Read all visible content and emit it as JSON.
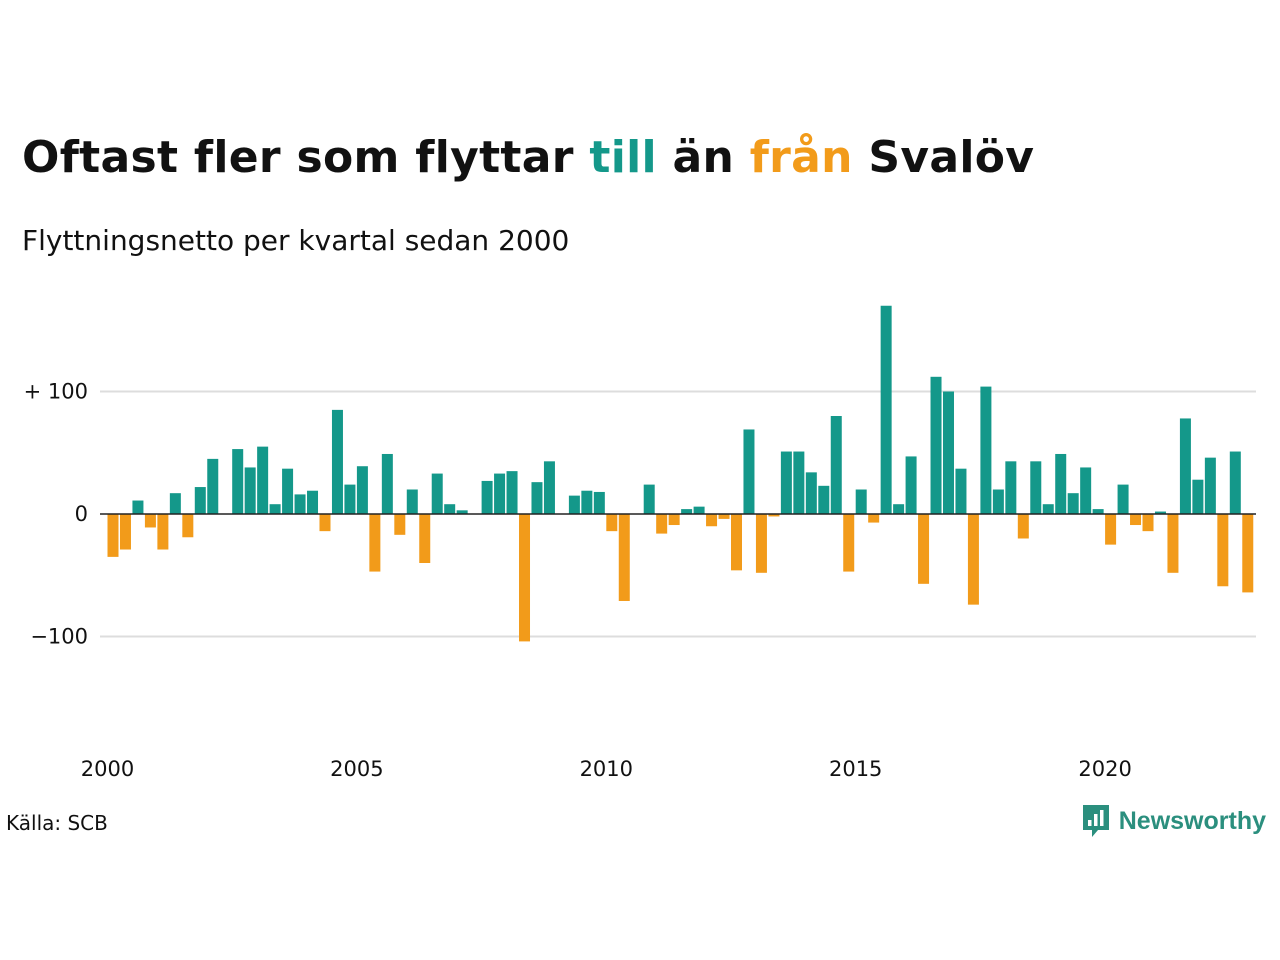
{
  "title": {
    "part1": "Oftast fler som flyttar ",
    "highlight_pos": "till",
    "part2": " än ",
    "highlight_neg": "från",
    "part3": " Svalöv"
  },
  "subtitle": "Flyttningsnetto per kvartal sedan 2000",
  "source": "Källa: SCB",
  "brand": "Newsworthy",
  "colors": {
    "positive": "#14988a",
    "negative": "#f29b1a",
    "grid": "#dddddd",
    "axis": "#222222",
    "brand": "#2b8f7e"
  },
  "chart_data": {
    "type": "bar",
    "title": "Oftast fler som flyttar till än från Svalöv",
    "subtitle": "Flyttningsnetto per kvartal sedan 2000",
    "start": {
      "year": 2000,
      "quarter": 1
    },
    "values": [
      -35,
      -29,
      11,
      -11,
      -29,
      17,
      -19,
      22,
      45,
      0,
      53,
      38,
      55,
      8,
      37,
      16,
      19,
      -14,
      85,
      24,
      39,
      -47,
      49,
      -17,
      20,
      -40,
      33,
      8,
      3,
      0,
      27,
      33,
      35,
      -104,
      26,
      43,
      0,
      15,
      19,
      18,
      -14,
      -71,
      0,
      24,
      -16,
      -9,
      4,
      6,
      -10,
      -4,
      -46,
      69,
      -48,
      -2,
      51,
      51,
      34,
      23,
      80,
      -47,
      20,
      -7,
      170,
      8,
      47,
      -57,
      112,
      100,
      37,
      -74,
      104,
      20,
      43,
      -20,
      43,
      8,
      49,
      17,
      38,
      4,
      -25,
      24,
      -9,
      -14,
      2,
      -48,
      78,
      28,
      46,
      -59,
      51,
      -64
    ],
    "yticks": [
      100,
      0,
      -100
    ],
    "ytick_labels": [
      "+ 100",
      "0",
      "−100"
    ],
    "xticks": [
      "2000",
      "2005",
      "2010",
      "2015",
      "2020"
    ],
    "ylim": [
      -150,
      175
    ]
  }
}
